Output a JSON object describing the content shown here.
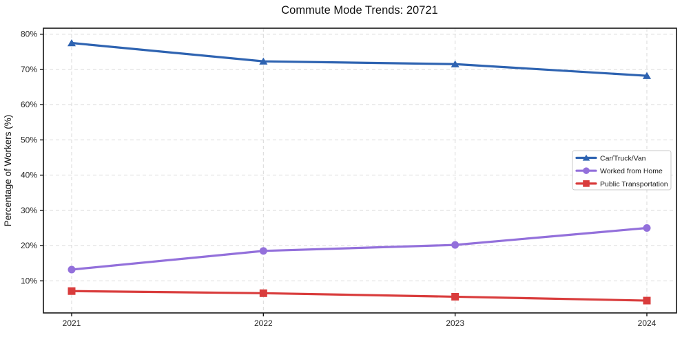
{
  "chart_data": {
    "type": "line",
    "title": "Commute Mode Trends: 20721",
    "xlabel": "",
    "ylabel": "Percentage of Workers (%)",
    "categories": [
      "2021",
      "2022",
      "2023",
      "2024"
    ],
    "series": [
      {
        "name": "Car/Truck/Van",
        "color": "#2e63b1",
        "marker": "triangle",
        "values": [
          77.5,
          72.3,
          71.5,
          68.2
        ]
      },
      {
        "name": "Worked from Home",
        "color": "#9370db",
        "marker": "circle",
        "values": [
          13.2,
          18.5,
          20.2,
          25.0
        ]
      },
      {
        "name": "Public Transportation",
        "color": "#d93c3c",
        "marker": "square",
        "values": [
          7.1,
          6.5,
          5.5,
          4.4
        ]
      }
    ],
    "y_ticks": [
      10,
      20,
      30,
      40,
      50,
      60,
      70,
      80
    ],
    "y_tick_suffix": "%",
    "ylim": [
      0.9,
      81.7
    ],
    "grid": true,
    "grid_style": "dashed",
    "legend_position": "right-middle",
    "colors": {
      "background": "#ffffff",
      "grid": "#d9d9d9",
      "axis_frame": "#141414",
      "tick_label": "#262626",
      "legend_border": "#c9c9c9",
      "legend_background": "#ffffff"
    }
  }
}
